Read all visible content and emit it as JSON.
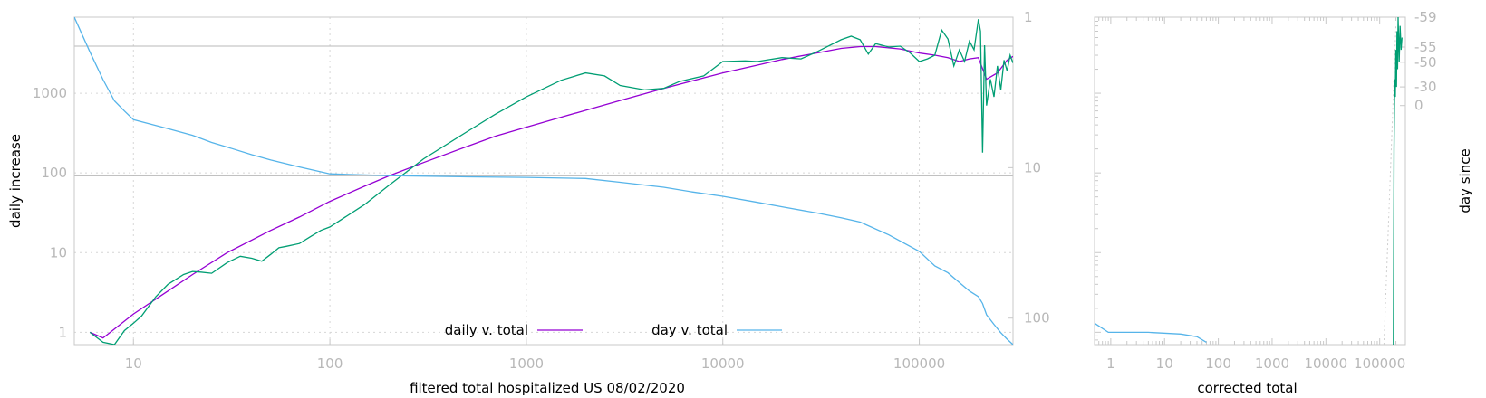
{
  "chart_data": [
    {
      "type": "line",
      "xlabel": "filtered total hospitalized US 08/02/2020",
      "ylabel": "daily increase",
      "x_scale": "log",
      "y_scale": "log",
      "xlim": [
        5,
        300000
      ],
      "ylim": [
        0.7,
        9000
      ],
      "y2lim": [
        1,
        150
      ],
      "y2_scale": "log-reversed",
      "x_ticks": [
        10,
        100,
        1000,
        10000,
        100000
      ],
      "y_ticks": [
        1,
        10,
        100,
        1000
      ],
      "y2_ticks": [
        1,
        10,
        100
      ],
      "hlines": [
        3900,
        92
      ],
      "grid": true,
      "legend_position": "bottom-center",
      "series": [
        {
          "name": "daily v. total",
          "color": "#9400d3",
          "points": [
            [
              6,
              1.0
            ],
            [
              7,
              0.85
            ],
            [
              8,
              1.1
            ],
            [
              10,
              1.7
            ],
            [
              15,
              3.3
            ],
            [
              20,
              5.3
            ],
            [
              30,
              10
            ],
            [
              50,
              19
            ],
            [
              70,
              28
            ],
            [
              100,
              44
            ],
            [
              150,
              68
            ],
            [
              200,
              92
            ],
            [
              300,
              135
            ],
            [
              500,
              215
            ],
            [
              700,
              290
            ],
            [
              1000,
              375
            ],
            [
              1500,
              500
            ],
            [
              2000,
              610
            ],
            [
              3000,
              810
            ],
            [
              5000,
              1150
            ],
            [
              7000,
              1430
            ],
            [
              10000,
              1800
            ],
            [
              15000,
              2250
            ],
            [
              20000,
              2650
            ],
            [
              30000,
              3200
            ],
            [
              40000,
              3650
            ],
            [
              50000,
              3850
            ],
            [
              60000,
              3850
            ],
            [
              80000,
              3600
            ],
            [
              100000,
              3200
            ],
            [
              120000,
              3000
            ],
            [
              140000,
              2800
            ],
            [
              160000,
              2500
            ],
            [
              180000,
              2700
            ],
            [
              200000,
              2800
            ],
            [
              220000,
              1500
            ],
            [
              250000,
              1800
            ],
            [
              280000,
              2600
            ],
            [
              300000,
              2900
            ]
          ]
        },
        {
          "name": "",
          "color": "#009e73",
          "points": [
            [
              6,
              1.0
            ],
            [
              7,
              0.75
            ],
            [
              8,
              0.7
            ],
            [
              9,
              1.05
            ],
            [
              10,
              1.3
            ],
            [
              11,
              1.6
            ],
            [
              13,
              2.8
            ],
            [
              15,
              4.0
            ],
            [
              18,
              5.3
            ],
            [
              20,
              5.8
            ],
            [
              22,
              5.7
            ],
            [
              25,
              5.5
            ],
            [
              30,
              7.5
            ],
            [
              35,
              9.0
            ],
            [
              40,
              8.5
            ],
            [
              45,
              7.8
            ],
            [
              50,
              9.5
            ],
            [
              55,
              11.5
            ],
            [
              60,
              12
            ],
            [
              70,
              13
            ],
            [
              80,
              16
            ],
            [
              90,
              19
            ],
            [
              100,
              21
            ],
            [
              150,
              40
            ],
            [
              200,
              70
            ],
            [
              300,
              150
            ],
            [
              500,
              330
            ],
            [
              700,
              550
            ],
            [
              1000,
              900
            ],
            [
              1500,
              1450
            ],
            [
              2000,
              1800
            ],
            [
              2500,
              1650
            ],
            [
              3000,
              1250
            ],
            [
              4000,
              1100
            ],
            [
              5000,
              1150
            ],
            [
              6000,
              1400
            ],
            [
              8000,
              1650
            ],
            [
              10000,
              2500
            ],
            [
              13000,
              2550
            ],
            [
              15000,
              2500
            ],
            [
              20000,
              2800
            ],
            [
              25000,
              2700
            ],
            [
              30000,
              3300
            ],
            [
              40000,
              4700
            ],
            [
              45000,
              5200
            ],
            [
              50000,
              4700
            ],
            [
              55000,
              3100
            ],
            [
              60000,
              4200
            ],
            [
              70000,
              3800
            ],
            [
              80000,
              3900
            ],
            [
              90000,
              3200
            ],
            [
              100000,
              2500
            ],
            [
              110000,
              2700
            ],
            [
              120000,
              3000
            ],
            [
              130000,
              6200
            ],
            [
              140000,
              4800
            ],
            [
              150000,
              2200
            ],
            [
              160000,
              3500
            ],
            [
              170000,
              2500
            ],
            [
              180000,
              4500
            ],
            [
              190000,
              3500
            ],
            [
              200000,
              8500
            ],
            [
              205000,
              6000
            ],
            [
              210000,
              180
            ],
            [
              215000,
              4000
            ],
            [
              220000,
              700
            ],
            [
              230000,
              1500
            ],
            [
              240000,
              900
            ],
            [
              250000,
              2200
            ],
            [
              260000,
              1100
            ],
            [
              270000,
              2600
            ],
            [
              280000,
              1900
            ],
            [
              290000,
              3000
            ],
            [
              300000,
              2400
            ]
          ]
        },
        {
          "name": "day v. total",
          "color": "#56b4e9",
          "axis": "right",
          "points": [
            [
              5,
              1.0
            ],
            [
              6,
              1.7
            ],
            [
              7,
              2.6
            ],
            [
              8,
              3.6
            ],
            [
              9,
              4.2
            ],
            [
              10,
              4.8
            ],
            [
              12,
              5.1
            ],
            [
              15,
              5.5
            ],
            [
              20,
              6.1
            ],
            [
              25,
              6.8
            ],
            [
              30,
              7.3
            ],
            [
              40,
              8.2
            ],
            [
              50,
              8.9
            ],
            [
              70,
              9.9
            ],
            [
              100,
              11
            ],
            [
              200,
              11.3
            ],
            [
              500,
              11.5
            ],
            [
              1000,
              11.6
            ],
            [
              2000,
              11.8
            ],
            [
              3000,
              12.5
            ],
            [
              5000,
              13.5
            ],
            [
              7000,
              14.5
            ],
            [
              10000,
              15.5
            ],
            [
              15000,
              17
            ],
            [
              20000,
              18.2
            ],
            [
              30000,
              20
            ],
            [
              40000,
              21.5
            ],
            [
              50000,
              23
            ],
            [
              70000,
              28
            ],
            [
              100000,
              36
            ],
            [
              120000,
              45
            ],
            [
              140000,
              50
            ],
            [
              160000,
              58
            ],
            [
              180000,
              66
            ],
            [
              200000,
              72
            ],
            [
              210000,
              80
            ],
            [
              220000,
              95
            ],
            [
              240000,
              110
            ],
            [
              260000,
              125
            ],
            [
              280000,
              138
            ],
            [
              300000,
              150
            ]
          ]
        }
      ]
    },
    {
      "type": "line",
      "xlabel": "corrected total",
      "ylabel": "day since",
      "x_scale": "log",
      "y_scale": "log",
      "xlim": [
        0.5,
        300000
      ],
      "ylim": [
        0.7,
        9000
      ],
      "x_ticks": [
        1,
        10,
        100,
        1000,
        10000,
        100000
      ],
      "y2_ticks": [
        -59,
        -55,
        -50,
        -30,
        0
      ],
      "y2_tick_positions": [
        9000,
        3800,
        2450,
        1200,
        700
      ],
      "grid": false,
      "series": [
        {
          "name": "",
          "color": "#56b4e9",
          "points": [
            [
              0.5,
              1.3
            ],
            [
              0.9,
              1.0
            ],
            [
              5,
              1.0
            ],
            [
              20,
              0.95
            ],
            [
              40,
              0.88
            ],
            [
              60,
              0.75
            ]
          ]
        },
        {
          "name": "",
          "color": "#009e73",
          "points": [
            [
              180000,
              0.7
            ],
            [
              185000,
              200
            ],
            [
              190000,
              1500
            ],
            [
              195000,
              900
            ],
            [
              200000,
              3500
            ],
            [
              205000,
              1200
            ],
            [
              210000,
              6000
            ],
            [
              215000,
              2000
            ],
            [
              220000,
              9000
            ],
            [
              230000,
              2500
            ],
            [
              240000,
              7000
            ],
            [
              250000,
              3500
            ],
            [
              260000,
              5000
            ]
          ]
        }
      ]
    }
  ]
}
